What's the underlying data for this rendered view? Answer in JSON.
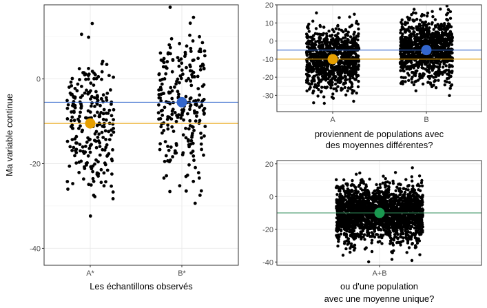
{
  "chart_data": [
    {
      "type": "scatter",
      "title": "",
      "xlabel": "Les échantillons observés",
      "ylabel": "Ma variable continue",
      "categories": [
        "A*",
        "B*"
      ],
      "ylim": [
        -44,
        17.5
      ],
      "yticks": [
        0,
        -20,
        -40
      ],
      "grid": true,
      "series": [
        {
          "category": "A*",
          "n": 250,
          "mean": -10.5,
          "sd": 8.5,
          "color": "#000000"
        },
        {
          "category": "B*",
          "n": 250,
          "mean": -5.5,
          "sd": 8.5,
          "color": "#000000"
        }
      ],
      "means": [
        {
          "category": "A*",
          "value": -10.5,
          "color": "#E69F00"
        },
        {
          "category": "B*",
          "value": -5.5,
          "color": "#3366CC"
        }
      ],
      "hlines": [
        {
          "value": -5.5,
          "color": "#3366CC"
        },
        {
          "value": -10.5,
          "color": "#E69F00"
        }
      ]
    },
    {
      "type": "scatter",
      "title": "",
      "xlabel": "proviennent de populations avec des moyennes différentes?",
      "xlabel_lines": [
        "proviennent de populations avec",
        "des moyennes différentes?"
      ],
      "ylabel": "",
      "categories": [
        "A",
        "B"
      ],
      "ylim": [
        -39,
        20
      ],
      "yticks": [
        20,
        10,
        0,
        -10,
        -20,
        -30
      ],
      "grid": true,
      "series": [
        {
          "category": "A",
          "n": 1000,
          "mean": -10,
          "sd": 8.5,
          "color": "#000000"
        },
        {
          "category": "B",
          "n": 1000,
          "mean": -5,
          "sd": 8.5,
          "color": "#000000"
        }
      ],
      "means": [
        {
          "category": "A",
          "value": -10,
          "color": "#E69F00"
        },
        {
          "category": "B",
          "value": -5,
          "color": "#3366CC"
        }
      ],
      "hlines": [
        {
          "value": -5,
          "color": "#3366CC"
        },
        {
          "value": -10,
          "color": "#E69F00"
        }
      ]
    },
    {
      "type": "scatter",
      "title": "",
      "xlabel": "ou d'une population avec une moyenne unique?",
      "xlabel_lines": [
        "ou d'une population",
        "avec une moyenne unique?"
      ],
      "ylabel": "",
      "categories": [
        "A+B"
      ],
      "ylim": [
        -42,
        22
      ],
      "yticks": [
        20,
        0,
        -20,
        -40
      ],
      "grid": true,
      "series": [
        {
          "category": "A+B",
          "n": 2000,
          "mean": -10,
          "sd": 8.5,
          "color": "#000000"
        }
      ],
      "means": [
        {
          "category": "A+B",
          "value": -10,
          "color": "#1A9850"
        }
      ],
      "hlines": [
        {
          "value": -10,
          "color": "#2E8B57"
        }
      ]
    }
  ]
}
